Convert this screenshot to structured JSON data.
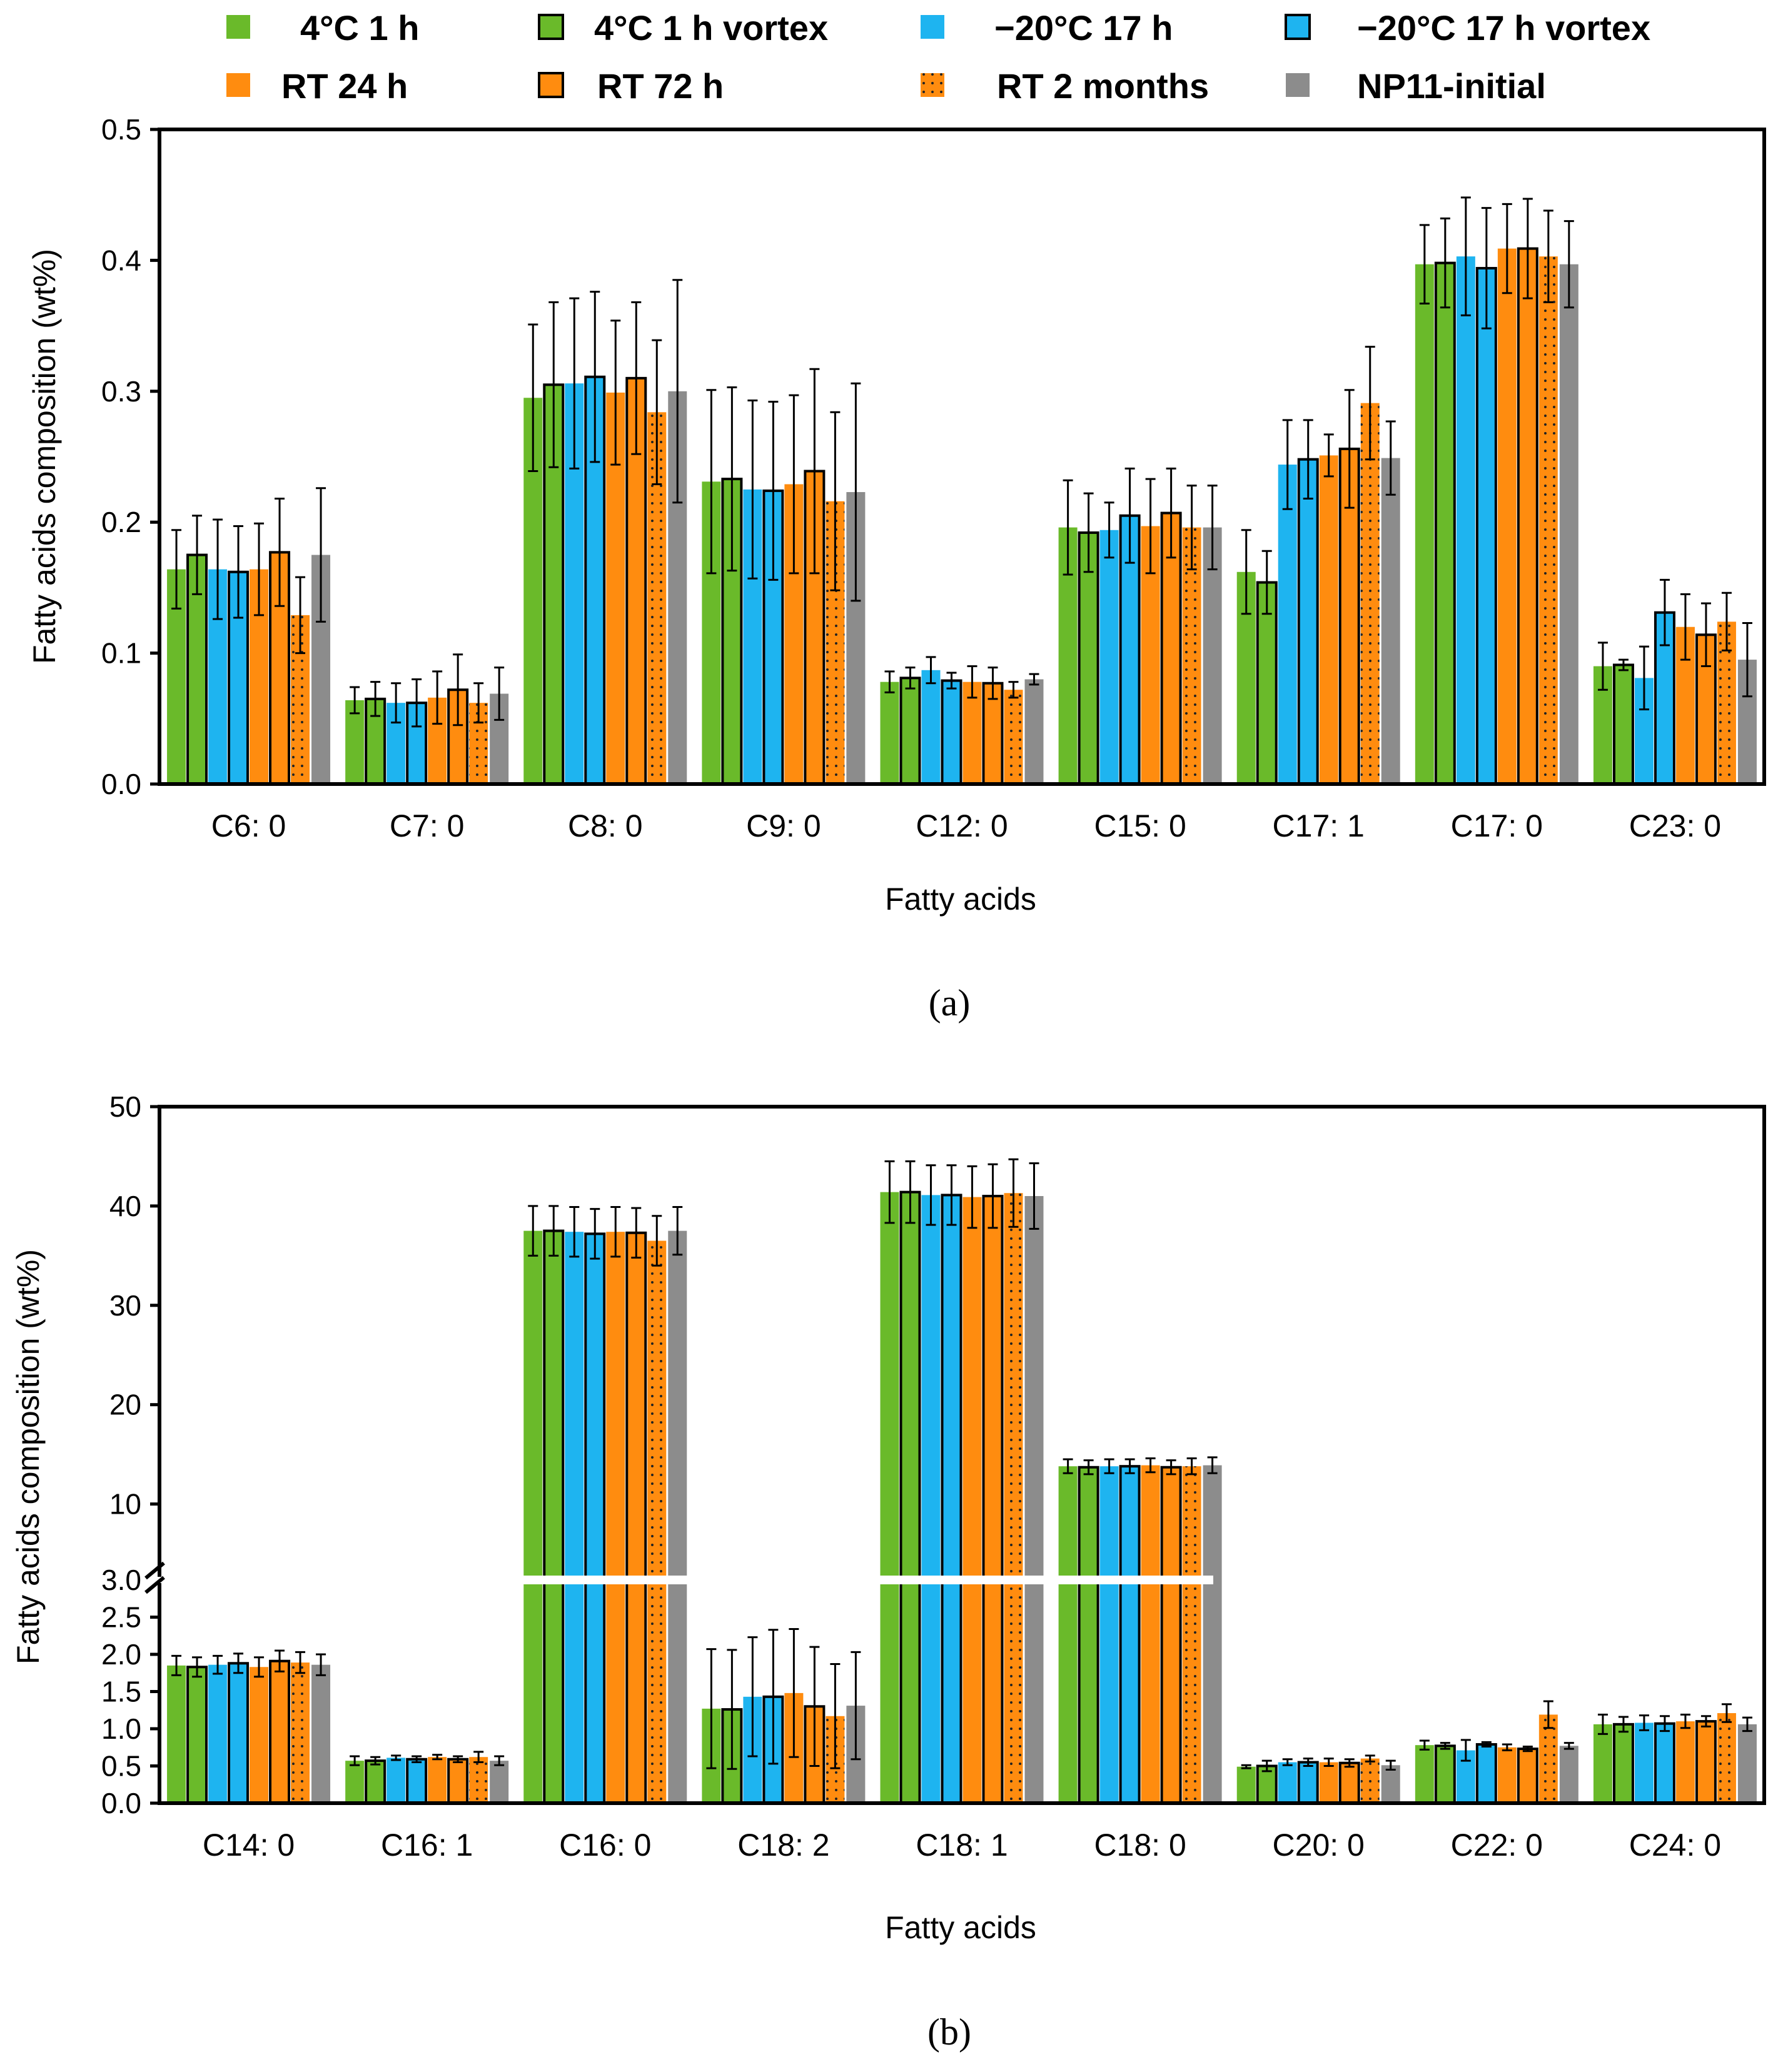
{
  "legend": [
    {
      "label": "4°C 1 h",
      "color": "#6aba2a",
      "outlined": false,
      "dotted": false
    },
    {
      "label": "4°C 1 h vortex",
      "color": "#6aba2a",
      "outlined": true,
      "dotted": false
    },
    {
      "label": "−20°C 17 h",
      "color": "#1eb4f0",
      "outlined": false,
      "dotted": false
    },
    {
      "label": "−20°C 17 h vortex",
      "color": "#1eb4f0",
      "outlined": true,
      "dotted": false
    },
    {
      "label": "RT 24 h",
      "color": "#ff8c0f",
      "outlined": false,
      "dotted": false
    },
    {
      "label": "RT 72 h",
      "color": "#ff8c0f",
      "outlined": true,
      "dotted": false
    },
    {
      "label": "RT 2 months",
      "color": "#ff8c0f",
      "outlined": false,
      "dotted": true
    },
    {
      "label": "NP11-initial",
      "color": "#8c8c8c",
      "outlined": false,
      "dotted": false
    }
  ],
  "panel_labels": {
    "a": "(a)",
    "b": "(b)"
  },
  "chart_data": [
    {
      "type": "bar",
      "panel": "a",
      "xlabel": "Fatty acids",
      "ylabel": "Fatty acids composition (wt%)",
      "ylim": [
        0,
        0.5
      ],
      "yticks": [
        "0.0",
        "0.1",
        "0.2",
        "0.3",
        "0.4",
        "0.5"
      ],
      "categories": [
        "C6: 0",
        "C7: 0",
        "C8: 0",
        "C9: 0",
        "C12: 0",
        "C15: 0",
        "C17: 1",
        "C17: 0",
        "C23: 0"
      ],
      "series": [
        {
          "name": "4°C 1 h",
          "values": [
            0.164,
            0.064,
            0.295,
            0.231,
            0.078,
            0.196,
            0.162,
            0.397,
            0.09
          ],
          "errors": [
            0.03,
            0.01,
            0.056,
            0.07,
            0.008,
            0.036,
            0.032,
            0.03,
            0.018
          ]
        },
        {
          "name": "4°C 1 h vortex",
          "values": [
            0.175,
            0.065,
            0.305,
            0.233,
            0.081,
            0.192,
            0.154,
            0.398,
            0.091
          ],
          "errors": [
            0.03,
            0.013,
            0.063,
            0.07,
            0.008,
            0.03,
            0.024,
            0.034,
            0.004
          ]
        },
        {
          "name": "−20°C 17 h",
          "values": [
            0.164,
            0.062,
            0.306,
            0.225,
            0.087,
            0.194,
            0.244,
            0.403,
            0.081
          ],
          "errors": [
            0.038,
            0.015,
            0.065,
            0.068,
            0.01,
            0.021,
            0.034,
            0.045,
            0.024
          ]
        },
        {
          "name": "−20°C 17 h vortex",
          "values": [
            0.162,
            0.062,
            0.311,
            0.224,
            0.079,
            0.205,
            0.248,
            0.394,
            0.131
          ],
          "errors": [
            0.035,
            0.018,
            0.065,
            0.068,
            0.006,
            0.036,
            0.03,
            0.046,
            0.025
          ]
        },
        {
          "name": "RT 24 h",
          "values": [
            0.164,
            0.066,
            0.299,
            0.229,
            0.078,
            0.197,
            0.251,
            0.409,
            0.12
          ],
          "errors": [
            0.035,
            0.02,
            0.055,
            0.068,
            0.012,
            0.036,
            0.016,
            0.034,
            0.025
          ]
        },
        {
          "name": "RT 72 h",
          "values": [
            0.177,
            0.072,
            0.31,
            0.239,
            0.077,
            0.207,
            0.256,
            0.409,
            0.114
          ],
          "errors": [
            0.041,
            0.027,
            0.058,
            0.078,
            0.012,
            0.034,
            0.045,
            0.038,
            0.024
          ]
        },
        {
          "name": "RT 2 months",
          "values": [
            0.129,
            0.062,
            0.284,
            0.216,
            0.072,
            0.196,
            0.291,
            0.403,
            0.124
          ],
          "errors": [
            0.029,
            0.015,
            0.055,
            0.068,
            0.006,
            0.032,
            0.043,
            0.035,
            0.022
          ]
        },
        {
          "name": "NP11-initial",
          "values": [
            0.175,
            0.069,
            0.3,
            0.223,
            0.08,
            0.196,
            0.249,
            0.397,
            0.095
          ],
          "errors": [
            0.051,
            0.02,
            0.085,
            0.083,
            0.004,
            0.032,
            0.028,
            0.033,
            0.028
          ]
        }
      ]
    },
    {
      "type": "bar",
      "panel": "b",
      "xlabel": "Fatty acids",
      "ylabel": "Fatty acids composition (wt%)",
      "ylim": [
        0,
        50
      ],
      "axis_break": [
        3,
        5
      ],
      "yticks_lower": [
        "0.0",
        "0.5",
        "1.0",
        "1.5",
        "2.0",
        "2.5",
        "3.0"
      ],
      "yticks_upper": [
        "10",
        "20",
        "30",
        "40",
        "50"
      ],
      "categories": [
        "C14: 0",
        "C16: 1",
        "C16: 0",
        "C18: 2",
        "C18: 1",
        "C18: 0",
        "C20: 0",
        "C22: 0",
        "C24: 0"
      ],
      "series": [
        {
          "name": "4°C 1 h",
          "values": [
            1.85,
            0.57,
            37.5,
            1.27,
            41.4,
            13.8,
            0.49,
            0.78,
            1.06
          ],
          "errors": [
            0.13,
            0.06,
            2.5,
            0.8,
            3.1,
            0.7,
            0.02,
            0.06,
            0.13
          ]
        },
        {
          "name": "4°C 1 h vortex",
          "values": [
            1.83,
            0.57,
            37.5,
            1.26,
            41.4,
            13.7,
            0.5,
            0.77,
            1.06
          ],
          "errors": [
            0.13,
            0.05,
            2.5,
            0.8,
            3.1,
            0.7,
            0.07,
            0.04,
            0.1
          ]
        },
        {
          "name": "−20°C 17 h",
          "values": [
            1.86,
            0.61,
            37.4,
            1.43,
            41.1,
            13.8,
            0.55,
            0.71,
            1.08
          ],
          "errors": [
            0.12,
            0.03,
            2.5,
            0.8,
            3.0,
            0.7,
            0.04,
            0.14,
            0.1
          ]
        },
        {
          "name": "−20°C 17 h vortex",
          "values": [
            1.88,
            0.59,
            37.2,
            1.43,
            41.1,
            13.8,
            0.55,
            0.79,
            1.07
          ],
          "errors": [
            0.13,
            0.04,
            2.5,
            0.9,
            3.0,
            0.7,
            0.05,
            0.03,
            0.1
          ]
        },
        {
          "name": "RT 24 h",
          "values": [
            1.83,
            0.62,
            37.4,
            1.48,
            40.9,
            13.9,
            0.55,
            0.75,
            1.1
          ],
          "errors": [
            0.13,
            0.03,
            2.5,
            0.86,
            3.1,
            0.7,
            0.05,
            0.04,
            0.09
          ]
        },
        {
          "name": "RT 72 h",
          "values": [
            1.91,
            0.59,
            37.3,
            1.3,
            41.0,
            13.7,
            0.54,
            0.73,
            1.1
          ],
          "errors": [
            0.14,
            0.04,
            2.5,
            0.8,
            3.2,
            0.7,
            0.05,
            0.03,
            0.07
          ]
        },
        {
          "name": "RT 2 months",
          "values": [
            1.89,
            0.62,
            36.5,
            1.17,
            41.3,
            13.8,
            0.6,
            1.19,
            1.21
          ],
          "errors": [
            0.14,
            0.07,
            2.5,
            0.7,
            3.4,
            0.8,
            0.04,
            0.18,
            0.12
          ]
        },
        {
          "name": "NP11-initial",
          "values": [
            1.86,
            0.57,
            37.5,
            1.31,
            41.0,
            13.9,
            0.51,
            0.77,
            1.06
          ],
          "errors": [
            0.14,
            0.06,
            2.4,
            0.72,
            3.3,
            0.8,
            0.06,
            0.04,
            0.09
          ]
        }
      ]
    }
  ]
}
